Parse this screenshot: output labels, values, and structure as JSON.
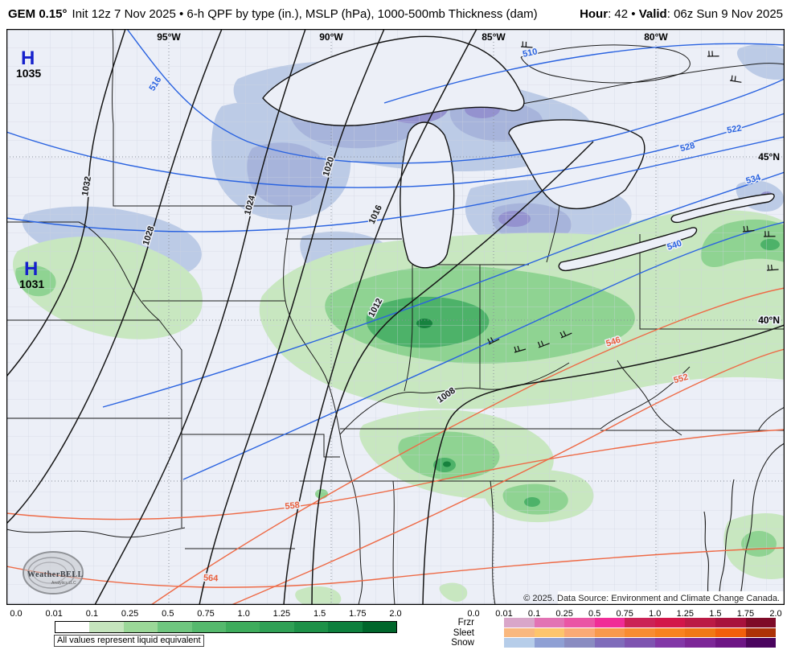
{
  "header": {
    "model": "GEM 0.15°",
    "subtitle": "Init 12z 7 Nov 2025 • 6-h QPF by type (in.), MSLP (hPa), 1000-500mb Thickness (dam)",
    "hour_label": "Hour",
    "hour_value": ": 42",
    "bullet": "•",
    "valid_label": "Valid",
    "valid_value": ": 06z Sun 9 Nov 2025"
  },
  "map": {
    "lon_labels": [
      "95°W",
      "90°W",
      "85°W",
      "80°W"
    ],
    "lat_labels": [
      "45°N",
      "40°N"
    ],
    "highs": [
      {
        "symbol": "H",
        "value": "1035"
      },
      {
        "symbol": "H",
        "value": "1031"
      }
    ],
    "mslp_labels": [
      "1032",
      "1028",
      "1024",
      "1020",
      "1016",
      "1012",
      "1008"
    ],
    "thickness_blue_labels": [
      "510",
      "516",
      "522",
      "528",
      "534",
      "540"
    ],
    "thickness_orange_labels": [
      "546",
      "552",
      "558",
      "564"
    ],
    "copyright": "© 2025. Data Source: Environment and Climate Change Canada.",
    "logo": {
      "brand": "WeatherBELL",
      "sub": "Analytics LLC"
    },
    "colors": {
      "background": "#eceff7",
      "county_line": "#cfd4e0",
      "state_line": "#1c1c1c",
      "mslp_contour": "#151515",
      "thickness_blue": "#2a63e0",
      "thickness_orange": "#ee6a46",
      "high_symbol": "#1520cc",
      "rain_light": "#c8e7c0",
      "rain_medium": "#8fd392",
      "rain_dark": "#4db269",
      "rain_darkest": "#17823e",
      "snow_light": "#bccbe6",
      "snow_medium": "#a7b4db",
      "snow_purple": "#9492cf"
    }
  },
  "legend_rain": {
    "ticks": [
      "0.0",
      "0.01",
      "0.1",
      "0.25",
      "0.5",
      "0.75",
      "1.0",
      "1.25",
      "1.5",
      "1.75",
      "2.0"
    ],
    "colors": [
      "#ffffff",
      "#c5e5bd",
      "#9bd898",
      "#6fc67f",
      "#55b96d",
      "#3eac5c",
      "#2fa055",
      "#1d9148",
      "#0d7f3d",
      "#00662b"
    ],
    "note": "All values represent liquid equivalent"
  },
  "legend_ptype": {
    "zero_tick": "0.0",
    "ticks": [
      "0.01",
      "0.1",
      "0.25",
      "0.5",
      "0.75",
      "1.0",
      "1.25",
      "1.5",
      "1.75",
      "2.0"
    ],
    "rows": [
      {
        "label": "Frzr",
        "colors": [
          "#d9a6c9",
          "#e273b4",
          "#ea55a5",
          "#f02d97",
          "#cb2256",
          "#d2164a",
          "#bb1a45",
          "#a8123d",
          "#7e0b28"
        ]
      },
      {
        "label": "Sleet",
        "colors": [
          "#f9b87f",
          "#fdc56d",
          "#fbaa75",
          "#f8994d",
          "#f88c32",
          "#f8821f",
          "#f17815",
          "#f25f0b",
          "#ad3207"
        ]
      },
      {
        "label": "Snow",
        "colors": [
          "#b6cde9",
          "#8fa0d4",
          "#8a8cc1",
          "#7f6cba",
          "#7e54b0",
          "#8238a7",
          "#7c2797",
          "#6d1685",
          "#4a045e"
        ]
      }
    ]
  }
}
